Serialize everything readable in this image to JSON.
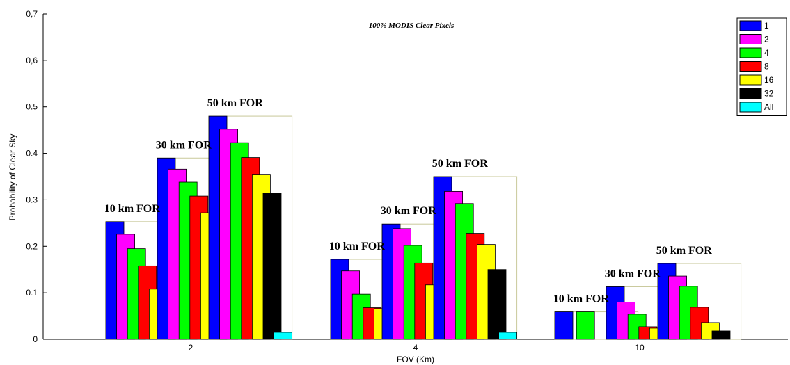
{
  "chart_data": {
    "type": "bar",
    "title": "100% MODIS Clear Pixels",
    "xlabel": "FOV (Km)",
    "ylabel": "Probability of Clear Sky",
    "ylim": [
      0,
      0.7
    ],
    "yticks": [
      "0",
      "0.1",
      "0.2",
      "0.3",
      "0.4",
      "0.5",
      "0,6",
      "0,7"
    ],
    "categories": [
      "2",
      "4",
      "10"
    ],
    "series_legend": [
      {
        "name": "1",
        "color": "#0000ff"
      },
      {
        "name": "2",
        "color": "#ff00ff"
      },
      {
        "name": "4",
        "color": "#00ff00"
      },
      {
        "name": "8",
        "color": "#ff0000"
      },
      {
        "name": "16",
        "color": "#ffff00"
      },
      {
        "name": "32",
        "color": "#000000"
      },
      {
        "name": "All",
        "color": "#00ffff"
      }
    ],
    "legend_position": "top-right",
    "groups": [
      {
        "category": "2",
        "sets": [
          {
            "label": "10 km FOR",
            "values": [
              0.253,
              0.226,
              0.195,
              0.158,
              0.108,
              0.057
            ]
          },
          {
            "label": "30 km FOR",
            "values": [
              0.39,
              0.366,
              0.338,
              0.308,
              0.272,
              0.228,
              0.022
            ]
          },
          {
            "label": "50 km FOR",
            "values": [
              0.48,
              0.452,
              0.423,
              0.391,
              0.355,
              0.314,
              0.015
            ]
          }
        ]
      },
      {
        "category": "4",
        "sets": [
          {
            "label": "10 km FOR",
            "values": [
              0.172,
              0.147,
              0.097,
              0.068,
              0.066
            ]
          },
          {
            "label": "30 km FOR",
            "values": [
              0.248,
              0.238,
              0.202,
              0.164,
              0.117,
              0.071,
              0.03
            ]
          },
          {
            "label": "50 km FOR",
            "values": [
              0.35,
              0.318,
              0.292,
              0.228,
              0.204,
              0.15,
              0.015
            ]
          }
        ]
      },
      {
        "category": "10",
        "sets": [
          {
            "label": "10 km FOR",
            "values": [
              0.059,
              null,
              0.059
            ]
          },
          {
            "label": "30 km FOR",
            "values": [
              0.113,
              0.08,
              0.054,
              0.027,
              0.024
            ]
          },
          {
            "label": "50 km FOR",
            "values": [
              0.163,
              0.136,
              0.114,
              0.069,
              0.036,
              0.018
            ]
          }
        ]
      }
    ]
  }
}
